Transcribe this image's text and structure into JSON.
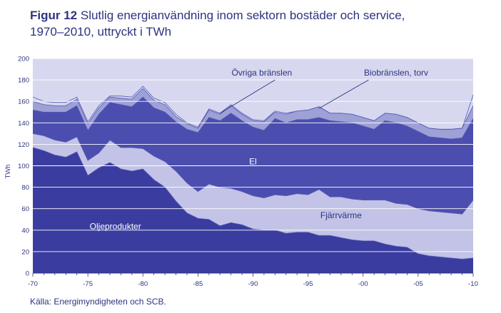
{
  "figure": {
    "label": "Figur 12",
    "title_line1": "Slutlig energianvändning inom sektorn bostäder och service,",
    "title_line2": "1970–2010, uttryckt i TWh"
  },
  "source": "Källa: Energimyndigheten och SCB.",
  "colors": {
    "olje": "#3a3d9f",
    "fjarr": "#c2c3e6",
    "el": "#4b4eae",
    "bio": "#9ea1d6",
    "ovriga": "#d7d8ef",
    "plot_bg": "#d7d8ef",
    "axis_text": "#2e3380"
  },
  "chart_data": {
    "type": "area",
    "stacked": true,
    "ylabel": "TWh",
    "ylim": [
      0,
      200
    ],
    "yticks": [
      0,
      20,
      40,
      60,
      80,
      100,
      120,
      140,
      160,
      180,
      200
    ],
    "xlim": [
      1970,
      2010
    ],
    "xticks": [
      1970,
      1975,
      1980,
      1985,
      1990,
      1995,
      2000,
      2005,
      2010
    ],
    "xtick_labels": [
      "-70",
      "-75",
      "-80",
      "-85",
      "-90",
      "-95",
      "-00",
      "-05",
      "-10"
    ],
    "grid": true,
    "x": [
      1970,
      1971,
      1972,
      1973,
      1974,
      1975,
      1976,
      1977,
      1978,
      1979,
      1980,
      1981,
      1982,
      1983,
      1984,
      1985,
      1986,
      1987,
      1988,
      1989,
      1990,
      1991,
      1992,
      1993,
      1994,
      1995,
      1996,
      1997,
      1998,
      1999,
      2000,
      2001,
      2002,
      2003,
      2004,
      2005,
      2006,
      2007,
      2008,
      2009,
      2010
    ],
    "series": [
      {
        "name": "Oljeprodukter",
        "color_key": "olje",
        "values": [
          117,
          114,
          110,
          108,
          113,
          91,
          98,
          103,
          97,
          95,
          97,
          87,
          80,
          67,
          56,
          51,
          50,
          44,
          47,
          45,
          41,
          40,
          40,
          37,
          38,
          38,
          35,
          35,
          33,
          31,
          30,
          30,
          27,
          25,
          24,
          18,
          16,
          15,
          14,
          13,
          14
        ]
      },
      {
        "name": "Fjärrvärme",
        "color_key": "fjarr",
        "values": [
          13,
          14,
          14,
          14,
          14,
          14,
          14,
          21,
          20,
          22,
          19,
          22,
          24,
          28,
          28,
          25,
          33,
          36,
          32,
          31,
          31,
          30,
          33,
          35,
          36,
          35,
          43,
          36,
          38,
          38,
          38,
          38,
          41,
          40,
          40,
          42,
          42,
          42,
          42,
          42,
          54
        ]
      },
      {
        "name": "El",
        "color_key": "el",
        "values": [
          22,
          22,
          26,
          28,
          29,
          28,
          36,
          35,
          40,
          38,
          48,
          45,
          46,
          46,
          50,
          55,
          62,
          62,
          70,
          66,
          64,
          63,
          71,
          68,
          69,
          70,
          67,
          71,
          70,
          71,
          69,
          66,
          74,
          75,
          73,
          72,
          69,
          69,
          69,
          71,
          76
        ]
      },
      {
        "name": "Biobränslen, torv",
        "color_key": "bio",
        "values": [
          8,
          7,
          6,
          6,
          6,
          6,
          6,
          5,
          6,
          7,
          8,
          7,
          7,
          5,
          5,
          4,
          7,
          6,
          7,
          6,
          6,
          8,
          6,
          8,
          8,
          9,
          10,
          7,
          8,
          8,
          8,
          8,
          7,
          8,
          8,
          8,
          8,
          8,
          9,
          9,
          12
        ]
      },
      {
        "name": "Övriga bränslen",
        "color_key": "ovriga",
        "values": [
          4,
          3,
          3,
          3,
          2,
          2,
          2,
          1,
          2,
          2,
          2,
          2,
          2,
          2,
          1,
          1,
          1,
          1,
          1,
          1,
          1,
          1,
          1,
          1,
          0,
          0,
          0,
          0,
          0,
          0,
          0,
          0,
          0,
          0,
          0,
          0,
          0,
          0,
          0,
          0,
          10
        ]
      }
    ],
    "area_labels": [
      {
        "text": "Oljeprodukter",
        "series": "Oljeprodukter"
      },
      {
        "text": "Fjärrvärme",
        "series": "Fjärrvärme"
      },
      {
        "text": "El",
        "series": "El"
      }
    ],
    "annotations": [
      {
        "text": "Övriga bränslen",
        "points_to_x": 1987
      },
      {
        "text": "Biobränslen, torv",
        "points_to_x": 1996
      }
    ]
  }
}
